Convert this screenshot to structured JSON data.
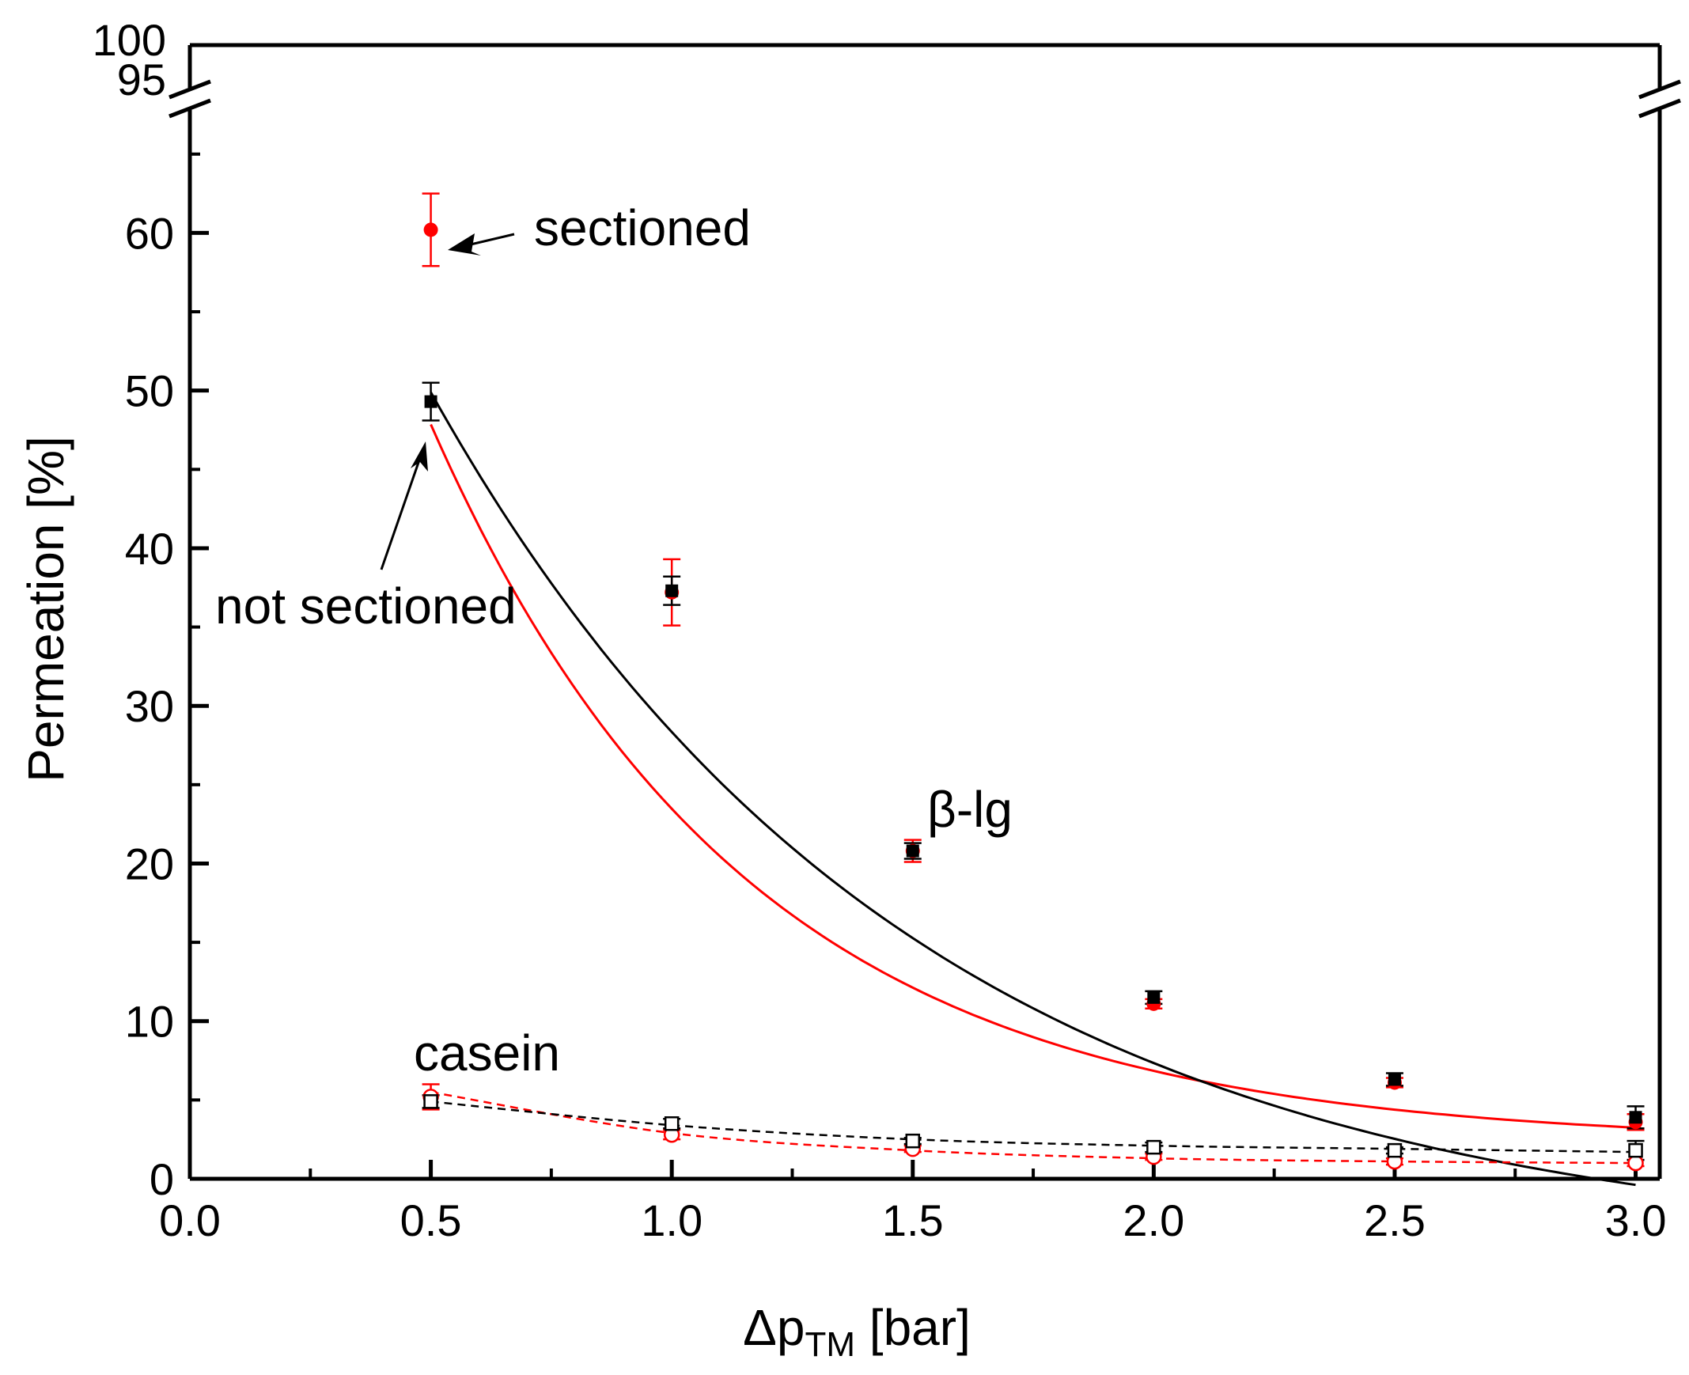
{
  "chart_data": {
    "type": "scatter",
    "title": "",
    "xlabel": {
      "main": "Δp",
      "subscript": "TM",
      "unit": " [bar]"
    },
    "ylabel": "Permeation [%]",
    "xlim": [
      0.0,
      3.05
    ],
    "ylim": [
      0,
      100
    ],
    "y_break": {
      "lower_max": 68,
      "upper_min": 95,
      "upper_max": 100
    },
    "x_ticks": [
      "0.0",
      "0.5",
      "1.0",
      "1.5",
      "2.0",
      "2.5",
      "3.0"
    ],
    "y_ticks": [
      "0",
      "10",
      "20",
      "30",
      "40",
      "50",
      "60"
    ],
    "y_ticks_upper": [
      "95",
      "100"
    ],
    "colors": {
      "sectioned": "#ff0000",
      "not_sectioned": "#000000"
    },
    "series": [
      {
        "name": "β-lg sectioned",
        "color": "#ff0000",
        "marker": "circle-filled",
        "x": [
          0.5,
          1.0,
          1.5,
          2.0,
          2.5,
          3.0
        ],
        "y": [
          60.2,
          37.2,
          20.8,
          11.1,
          6.1,
          3.6
        ],
        "err": [
          2.3,
          2.1,
          0.7,
          0.3,
          0.3,
          0.5
        ],
        "fit_type": "exponential",
        "fit": {
          "y0": 2.25,
          "A": 98.0,
          "k": 1.53
        },
        "fit_style": "solid"
      },
      {
        "name": "β-lg not sectioned",
        "color": "#000000",
        "marker": "square-filled",
        "x": [
          0.5,
          1.0,
          1.5,
          2.0,
          2.5,
          3.0
        ],
        "y": [
          49.3,
          37.3,
          20.8,
          11.5,
          6.3,
          3.9
        ],
        "err": [
          1.2,
          0.9,
          0.5,
          0.4,
          0.4,
          0.7
        ],
        "fit_type": "exponential",
        "fit": {
          "y0": -4.88,
          "A": 90.3,
          "k": 1.0
        },
        "fit_style": "solid"
      },
      {
        "name": "casein sectioned",
        "color": "#ff0000",
        "marker": "circle-open",
        "x": [
          0.5,
          1.0,
          1.5,
          2.0,
          2.5,
          3.0
        ],
        "y": [
          5.2,
          2.8,
          1.9,
          1.4,
          1.1,
          1.0
        ],
        "err": [
          0.8,
          0.3,
          0.2,
          0.2,
          0.2,
          0.2
        ],
        "fit_type": "spline",
        "fit_points": [
          5.5,
          2.9,
          1.8,
          1.3,
          1.1,
          1.0
        ],
        "fit_style": "dashed"
      },
      {
        "name": "casein not sectioned",
        "color": "#000000",
        "marker": "square-open",
        "x": [
          0.5,
          1.0,
          1.5,
          2.0,
          2.5,
          3.0
        ],
        "y": [
          4.9,
          3.5,
          2.4,
          2.0,
          1.8,
          1.8
        ],
        "err": [
          0.4,
          0.3,
          0.2,
          0.3,
          0.2,
          0.6
        ],
        "fit_type": "spline",
        "fit_points": [
          4.9,
          3.4,
          2.5,
          2.1,
          1.9,
          1.7
        ],
        "fit_style": "dashed"
      }
    ],
    "annotations": {
      "sectioned": "sectioned",
      "not_sectioned": "not sectioned",
      "beta_lg": "β-lg",
      "casein": "casein"
    }
  }
}
